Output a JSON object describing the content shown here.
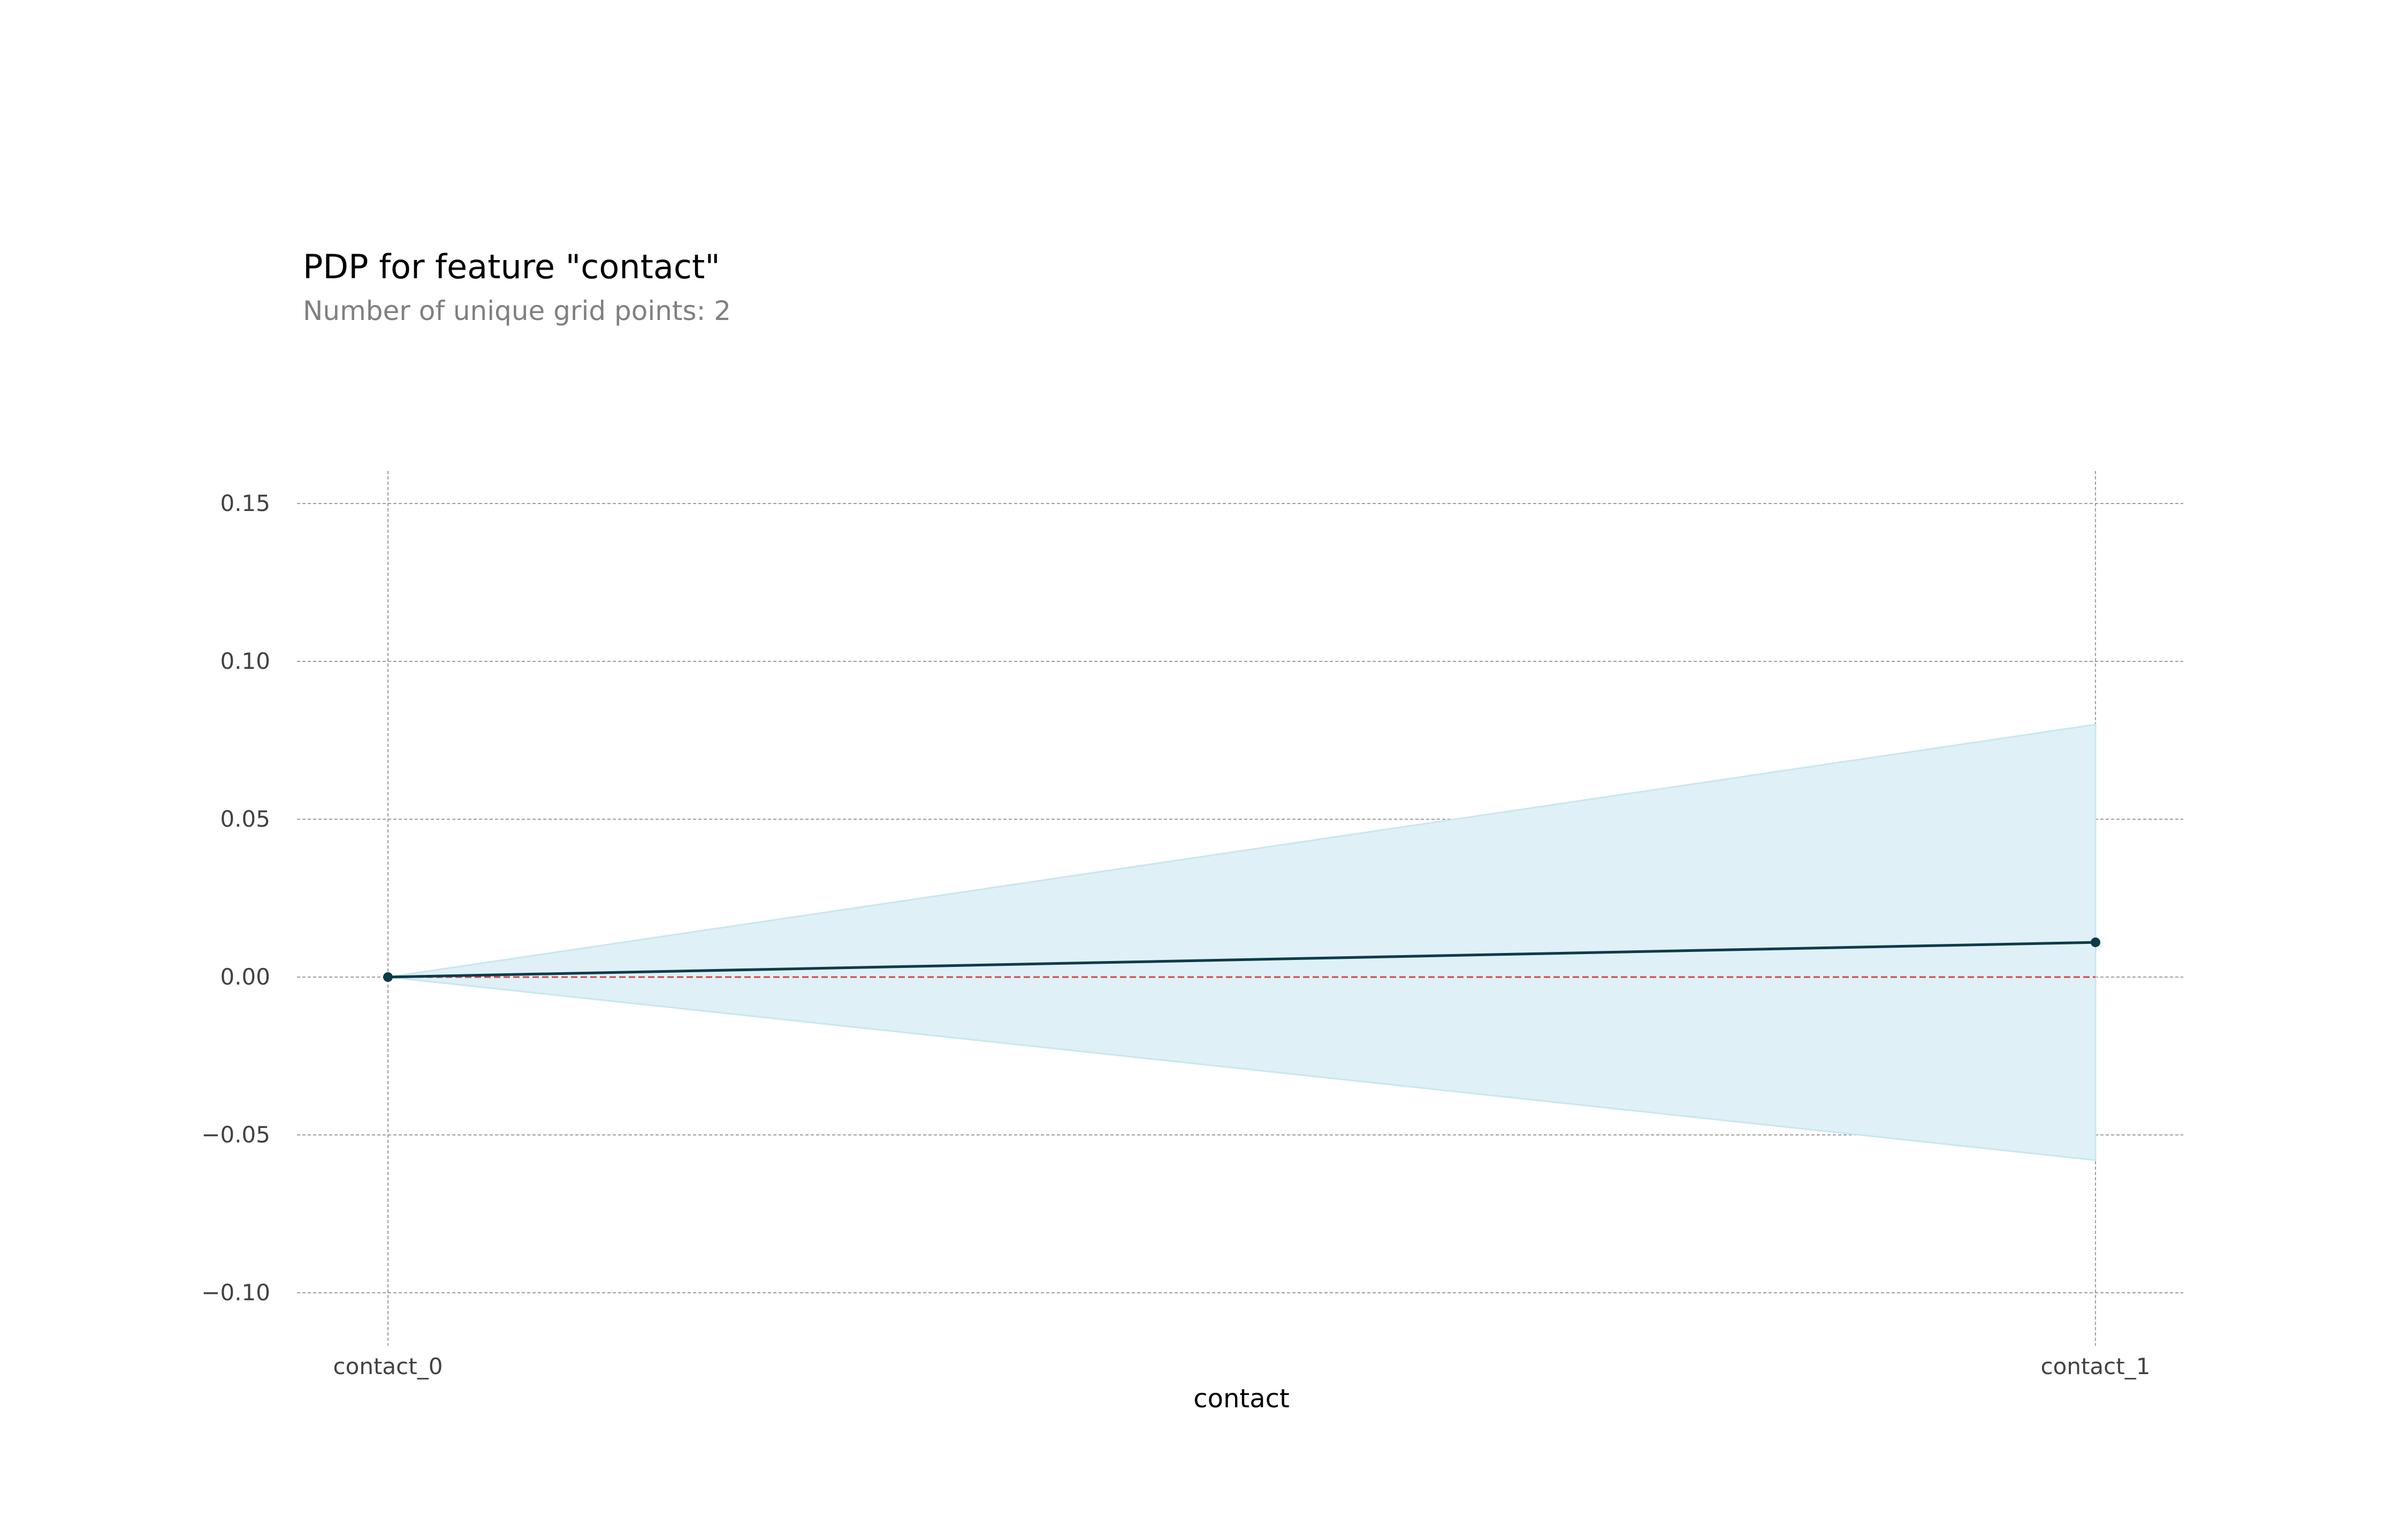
{
  "chart_data": {
    "type": "line",
    "title": "PDP for feature \"contact\"",
    "subtitle": "Number of unique grid points: 2",
    "xlabel": "contact",
    "ylabel": "",
    "categories": [
      "contact_0",
      "contact_1"
    ],
    "series": [
      {
        "values": [
          0.0,
          0.011
        ],
        "color": "#0d3b4c"
      }
    ],
    "band": {
      "upper": [
        0.0,
        0.08
      ],
      "lower": [
        0.0,
        -0.058
      ],
      "color": "#dff0f6"
    },
    "reference_line": {
      "value": 0.0,
      "color": "#d24747",
      "style": "dashed"
    },
    "yticks": [
      -0.1,
      -0.05,
      0.0,
      0.05,
      0.1,
      0.15
    ],
    "ytick_labels": [
      "−0.10",
      "−0.05",
      "0.00",
      "0.05",
      "0.10",
      "0.15"
    ],
    "ylim": [
      -0.118,
      0.16
    ],
    "grid": true
  }
}
